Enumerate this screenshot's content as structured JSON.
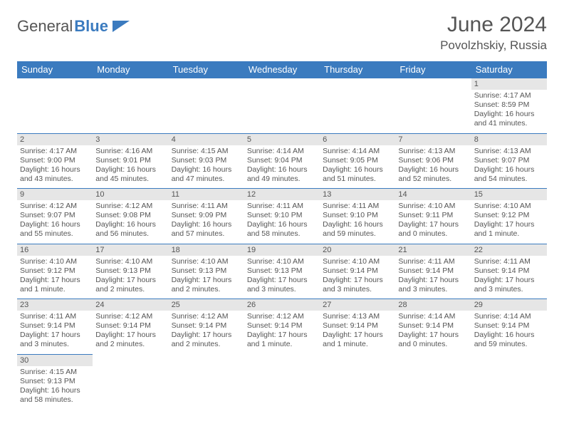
{
  "logo": {
    "text1": "General",
    "text2": "Blue"
  },
  "title": "June 2024",
  "location": "Povolzhskiy, Russia",
  "day_headers": [
    "Sunday",
    "Monday",
    "Tuesday",
    "Wednesday",
    "Thursday",
    "Friday",
    "Saturday"
  ],
  "colors": {
    "header_bg": "#3b7bbf",
    "header_fg": "#ffffff",
    "daynum_bg": "#e6e6e6",
    "text": "#555555",
    "border": "#3b7bbf"
  },
  "weeks": [
    [
      null,
      null,
      null,
      null,
      null,
      null,
      {
        "n": "1",
        "sunrise": "Sunrise: 4:17 AM",
        "sunset": "Sunset: 8:59 PM",
        "day1": "Daylight: 16 hours",
        "day2": "and 41 minutes."
      }
    ],
    [
      {
        "n": "2",
        "sunrise": "Sunrise: 4:17 AM",
        "sunset": "Sunset: 9:00 PM",
        "day1": "Daylight: 16 hours",
        "day2": "and 43 minutes."
      },
      {
        "n": "3",
        "sunrise": "Sunrise: 4:16 AM",
        "sunset": "Sunset: 9:01 PM",
        "day1": "Daylight: 16 hours",
        "day2": "and 45 minutes."
      },
      {
        "n": "4",
        "sunrise": "Sunrise: 4:15 AM",
        "sunset": "Sunset: 9:03 PM",
        "day1": "Daylight: 16 hours",
        "day2": "and 47 minutes."
      },
      {
        "n": "5",
        "sunrise": "Sunrise: 4:14 AM",
        "sunset": "Sunset: 9:04 PM",
        "day1": "Daylight: 16 hours",
        "day2": "and 49 minutes."
      },
      {
        "n": "6",
        "sunrise": "Sunrise: 4:14 AM",
        "sunset": "Sunset: 9:05 PM",
        "day1": "Daylight: 16 hours",
        "day2": "and 51 minutes."
      },
      {
        "n": "7",
        "sunrise": "Sunrise: 4:13 AM",
        "sunset": "Sunset: 9:06 PM",
        "day1": "Daylight: 16 hours",
        "day2": "and 52 minutes."
      },
      {
        "n": "8",
        "sunrise": "Sunrise: 4:13 AM",
        "sunset": "Sunset: 9:07 PM",
        "day1": "Daylight: 16 hours",
        "day2": "and 54 minutes."
      }
    ],
    [
      {
        "n": "9",
        "sunrise": "Sunrise: 4:12 AM",
        "sunset": "Sunset: 9:07 PM",
        "day1": "Daylight: 16 hours",
        "day2": "and 55 minutes."
      },
      {
        "n": "10",
        "sunrise": "Sunrise: 4:12 AM",
        "sunset": "Sunset: 9:08 PM",
        "day1": "Daylight: 16 hours",
        "day2": "and 56 minutes."
      },
      {
        "n": "11",
        "sunrise": "Sunrise: 4:11 AM",
        "sunset": "Sunset: 9:09 PM",
        "day1": "Daylight: 16 hours",
        "day2": "and 57 minutes."
      },
      {
        "n": "12",
        "sunrise": "Sunrise: 4:11 AM",
        "sunset": "Sunset: 9:10 PM",
        "day1": "Daylight: 16 hours",
        "day2": "and 58 minutes."
      },
      {
        "n": "13",
        "sunrise": "Sunrise: 4:11 AM",
        "sunset": "Sunset: 9:10 PM",
        "day1": "Daylight: 16 hours",
        "day2": "and 59 minutes."
      },
      {
        "n": "14",
        "sunrise": "Sunrise: 4:10 AM",
        "sunset": "Sunset: 9:11 PM",
        "day1": "Daylight: 17 hours",
        "day2": "and 0 minutes."
      },
      {
        "n": "15",
        "sunrise": "Sunrise: 4:10 AM",
        "sunset": "Sunset: 9:12 PM",
        "day1": "Daylight: 17 hours",
        "day2": "and 1 minute."
      }
    ],
    [
      {
        "n": "16",
        "sunrise": "Sunrise: 4:10 AM",
        "sunset": "Sunset: 9:12 PM",
        "day1": "Daylight: 17 hours",
        "day2": "and 1 minute."
      },
      {
        "n": "17",
        "sunrise": "Sunrise: 4:10 AM",
        "sunset": "Sunset: 9:13 PM",
        "day1": "Daylight: 17 hours",
        "day2": "and 2 minutes."
      },
      {
        "n": "18",
        "sunrise": "Sunrise: 4:10 AM",
        "sunset": "Sunset: 9:13 PM",
        "day1": "Daylight: 17 hours",
        "day2": "and 2 minutes."
      },
      {
        "n": "19",
        "sunrise": "Sunrise: 4:10 AM",
        "sunset": "Sunset: 9:13 PM",
        "day1": "Daylight: 17 hours",
        "day2": "and 3 minutes."
      },
      {
        "n": "20",
        "sunrise": "Sunrise: 4:10 AM",
        "sunset": "Sunset: 9:14 PM",
        "day1": "Daylight: 17 hours",
        "day2": "and 3 minutes."
      },
      {
        "n": "21",
        "sunrise": "Sunrise: 4:11 AM",
        "sunset": "Sunset: 9:14 PM",
        "day1": "Daylight: 17 hours",
        "day2": "and 3 minutes."
      },
      {
        "n": "22",
        "sunrise": "Sunrise: 4:11 AM",
        "sunset": "Sunset: 9:14 PM",
        "day1": "Daylight: 17 hours",
        "day2": "and 3 minutes."
      }
    ],
    [
      {
        "n": "23",
        "sunrise": "Sunrise: 4:11 AM",
        "sunset": "Sunset: 9:14 PM",
        "day1": "Daylight: 17 hours",
        "day2": "and 3 minutes."
      },
      {
        "n": "24",
        "sunrise": "Sunrise: 4:12 AM",
        "sunset": "Sunset: 9:14 PM",
        "day1": "Daylight: 17 hours",
        "day2": "and 2 minutes."
      },
      {
        "n": "25",
        "sunrise": "Sunrise: 4:12 AM",
        "sunset": "Sunset: 9:14 PM",
        "day1": "Daylight: 17 hours",
        "day2": "and 2 minutes."
      },
      {
        "n": "26",
        "sunrise": "Sunrise: 4:12 AM",
        "sunset": "Sunset: 9:14 PM",
        "day1": "Daylight: 17 hours",
        "day2": "and 1 minute."
      },
      {
        "n": "27",
        "sunrise": "Sunrise: 4:13 AM",
        "sunset": "Sunset: 9:14 PM",
        "day1": "Daylight: 17 hours",
        "day2": "and 1 minute."
      },
      {
        "n": "28",
        "sunrise": "Sunrise: 4:14 AM",
        "sunset": "Sunset: 9:14 PM",
        "day1": "Daylight: 17 hours",
        "day2": "and 0 minutes."
      },
      {
        "n": "29",
        "sunrise": "Sunrise: 4:14 AM",
        "sunset": "Sunset: 9:14 PM",
        "day1": "Daylight: 16 hours",
        "day2": "and 59 minutes."
      }
    ],
    [
      {
        "n": "30",
        "sunrise": "Sunrise: 4:15 AM",
        "sunset": "Sunset: 9:13 PM",
        "day1": "Daylight: 16 hours",
        "day2": "and 58 minutes."
      },
      null,
      null,
      null,
      null,
      null,
      null
    ]
  ]
}
